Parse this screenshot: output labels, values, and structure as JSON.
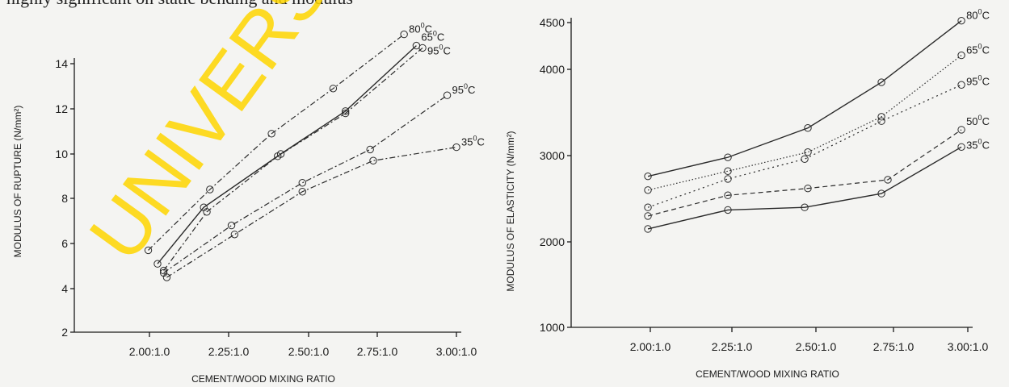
{
  "page": {
    "top_text": "highly significant on static bending and modulus",
    "watermark": "UNIVERSITY"
  },
  "colors": {
    "line": "#2a2a2a",
    "watermark": "#ffd600",
    "background": "#f4f4f2"
  },
  "chart_data": [
    {
      "type": "line",
      "xlabel": "CEMENT/WOOD MIXING RATIO",
      "ylabel": "MODULUS OF RUPTURE (N/mm²)",
      "x_ticks": [
        "2.00:1.0",
        "2.25:1.0",
        "2.50:1.0",
        "2.75:1.0",
        "3.00:1.0"
      ],
      "x_range": [
        1.76,
        3.0
      ],
      "y_ticks": [
        "2",
        "4",
        "6",
        "8",
        "10",
        "12",
        "14"
      ],
      "ylim": [
        2,
        14
      ],
      "grid": false,
      "series": [
        {
          "name": "80⁰C",
          "style": "dashdot",
          "points": [
            [
              2.0,
              5.7
            ],
            [
              2.2,
              8.4
            ],
            [
              2.4,
              10.9
            ],
            [
              2.6,
              12.9
            ],
            [
              2.83,
              15.3
            ]
          ]
        },
        {
          "name": "65⁰C",
          "style": "solid",
          "points": [
            [
              2.03,
              5.1
            ],
            [
              2.18,
              7.6
            ],
            [
              2.43,
              10.0
            ],
            [
              2.64,
              11.9
            ],
            [
              2.87,
              14.8
            ]
          ]
        },
        {
          "name": "95⁰C",
          "style": "dashdot",
          "points": [
            [
              2.05,
              4.8
            ],
            [
              2.19,
              7.4
            ],
            [
              2.42,
              9.9
            ],
            [
              2.64,
              11.8
            ],
            [
              2.89,
              14.7
            ]
          ]
        },
        {
          "name": "95⁰C",
          "style": "dashdot",
          "points": [
            [
              2.05,
              4.7
            ],
            [
              2.27,
              6.8
            ],
            [
              2.5,
              8.7
            ],
            [
              2.72,
              10.2
            ],
            [
              2.97,
              12.6
            ]
          ]
        },
        {
          "name": "35⁰C",
          "style": "dashdot",
          "points": [
            [
              2.06,
              4.5
            ],
            [
              2.28,
              6.4
            ],
            [
              2.5,
              8.3
            ],
            [
              2.73,
              9.7
            ],
            [
              3.0,
              10.3
            ]
          ]
        }
      ]
    },
    {
      "type": "line",
      "xlabel": "CEMENT/WOOD MIXING RATIO",
      "ylabel": "MODULUS OF ELASTICITY (N/mm²)",
      "x_ticks": [
        "2.00:1.0",
        "2.25:1.0",
        "2.50:1.0",
        "2.75:1.0",
        "3.00:1.0"
      ],
      "x_range": [
        1.76,
        3.0
      ],
      "y_ticks": [
        "1000",
        "2000",
        "3000",
        "4000",
        "4500"
      ],
      "ylim": [
        1000,
        4500
      ],
      "grid": false,
      "series": [
        {
          "name": "80⁰C",
          "style": "solid",
          "points": [
            [
              2.0,
              2760
            ],
            [
              2.25,
              2980
            ],
            [
              2.5,
              3320
            ],
            [
              2.73,
              3850
            ],
            [
              2.98,
              4520
            ]
          ]
        },
        {
          "name": "65⁰C",
          "style": "dotted-fine",
          "points": [
            [
              2.0,
              2600
            ],
            [
              2.25,
              2820
            ],
            [
              2.5,
              3040
            ],
            [
              2.73,
              3450
            ],
            [
              2.98,
              4150
            ]
          ]
        },
        {
          "name": "95⁰C",
          "style": "dotted",
          "points": [
            [
              2.0,
              2400
            ],
            [
              2.25,
              2730
            ],
            [
              2.49,
              2960
            ],
            [
              2.73,
              3400
            ],
            [
              2.98,
              3820
            ]
          ]
        },
        {
          "name": "50⁰C",
          "style": "dashed",
          "points": [
            [
              2.0,
              2300
            ],
            [
              2.25,
              2540
            ],
            [
              2.5,
              2620
            ],
            [
              2.75,
              2720
            ],
            [
              2.98,
              3300
            ]
          ]
        },
        {
          "name": "35⁰C",
          "style": "solid",
          "points": [
            [
              2.0,
              2150
            ],
            [
              2.25,
              2370
            ],
            [
              2.49,
              2400
            ],
            [
              2.73,
              2560
            ],
            [
              2.98,
              3100
            ]
          ]
        }
      ]
    }
  ]
}
